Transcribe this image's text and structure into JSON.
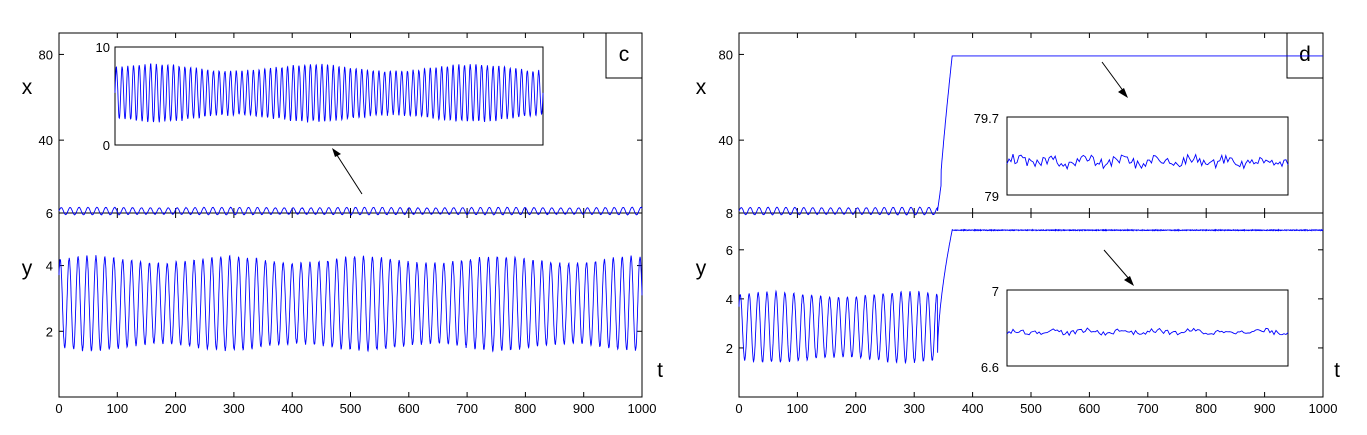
{
  "chart_data": [
    {
      "type": "line",
      "panel_label": "c",
      "x_tick_labels": [
        "0",
        "100",
        "200",
        "300",
        "400",
        "500",
        "600",
        "700",
        "800",
        "900",
        "1000"
      ],
      "xlabel": "t",
      "xlim": [
        0,
        1000
      ],
      "subplots": [
        {
          "var_label": "x",
          "ylim": [
            6,
            90
          ],
          "y_tick_labels": [
            "6",
            "40",
            "80"
          ],
          "series": [
            {
              "description": "oscillates about 7 with amplitude ~2",
              "mean": 7,
              "amplitude": 2
            }
          ],
          "inset": {
            "ylim": [
              0,
              10
            ],
            "y_tick_labels": [
              "0",
              "10"
            ],
            "series": [
              {
                "description": "zoom of x oscillation between ~3 and ~8",
                "min": 2.5,
                "max": 8
              }
            ]
          }
        },
        {
          "var_label": "y",
          "ylim": [
            0,
            5.6
          ],
          "y_tick_labels": [
            "2",
            "4"
          ],
          "series": [
            {
              "description": "oscillates between ~1.5 and ~4.2",
              "min": 1.5,
              "max": 4.2
            }
          ]
        }
      ]
    },
    {
      "type": "line",
      "panel_label": "d",
      "x_tick_labels": [
        "0",
        "100",
        "200",
        "300",
        "400",
        "500",
        "600",
        "700",
        "800",
        "900",
        "1000"
      ],
      "xlabel": "t",
      "xlim": [
        0,
        1000
      ],
      "subplots": [
        {
          "var_label": "x",
          "ylim": [
            6,
            90
          ],
          "y_tick_labels": [
            "8",
            "40",
            "80"
          ],
          "series": [
            {
              "description": "oscillates about 7 until t≈340, then jumps to ~79.3",
              "switch_t": 340,
              "final_value": 79.3
            }
          ],
          "inset": {
            "ylim": [
              79,
              79.7
            ],
            "y_tick_labels": [
              "79",
              "79.7"
            ],
            "series": [
              {
                "description": "fluctuations around 79.3"
              }
            ]
          }
        },
        {
          "var_label": "y",
          "ylim": [
            0,
            7.5
          ],
          "y_tick_labels": [
            "2",
            "4",
            "6"
          ],
          "series": [
            {
              "description": "oscillates between ~1.5 and ~4.2 until t≈340, then jumps to ~6.8",
              "switch_t": 340,
              "final_value": 6.8
            }
          ],
          "inset": {
            "ylim": [
              6.6,
              7
            ],
            "y_tick_labels": [
              "6.6",
              "7"
            ],
            "series": [
              {
                "description": "fluctuations around 6.78"
              }
            ]
          }
        }
      ]
    }
  ]
}
